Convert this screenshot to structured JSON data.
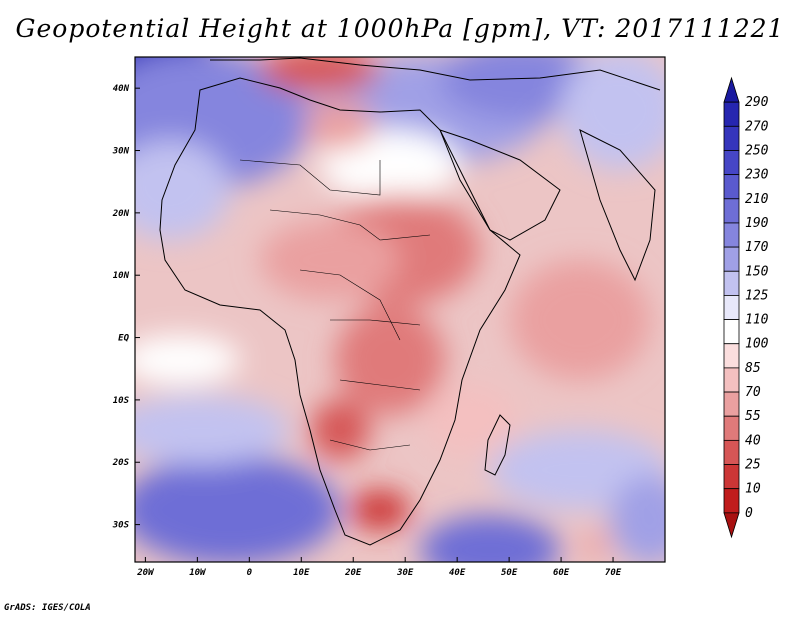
{
  "title": "Geopotential Height at 1000hPa [gpm], VT: 2017111221",
  "footer": "GrADS: IGES/COLA",
  "map": {
    "region": "Africa",
    "lon_labels": [
      "20W",
      "10W",
      "0",
      "10E",
      "20E",
      "30E",
      "40E",
      "50E",
      "60E",
      "70E"
    ],
    "lon_values": [
      -20,
      -10,
      0,
      10,
      20,
      30,
      40,
      50,
      60,
      70
    ],
    "lat_labels": [
      "40N",
      "30N",
      "20N",
      "10N",
      "EQ",
      "10S",
      "20S",
      "30S"
    ],
    "lat_values": [
      40,
      30,
      20,
      10,
      0,
      -10,
      -20,
      -30
    ],
    "lon_range": [
      -22,
      80
    ],
    "lat_range": [
      -36,
      45
    ]
  },
  "colorbar": {
    "labels": [
      "290",
      "270",
      "250",
      "230",
      "210",
      "190",
      "170",
      "150",
      "125",
      "110",
      "100",
      "85",
      "70",
      "55",
      "40",
      "25",
      "10",
      "0"
    ],
    "colors": [
      "#1a1aa0",
      "#2626b0",
      "#3535bc",
      "#4646c6",
      "#5a5ace",
      "#6e6ed6",
      "#8585de",
      "#a0a0e6",
      "#c2c2f0",
      "#e8e8fa",
      "#ffffff",
      "#fbdede",
      "#f4c0c0",
      "#eaa0a0",
      "#e07a7a",
      "#d65656",
      "#cc3636",
      "#c01c1c",
      "#a81010"
    ]
  }
}
